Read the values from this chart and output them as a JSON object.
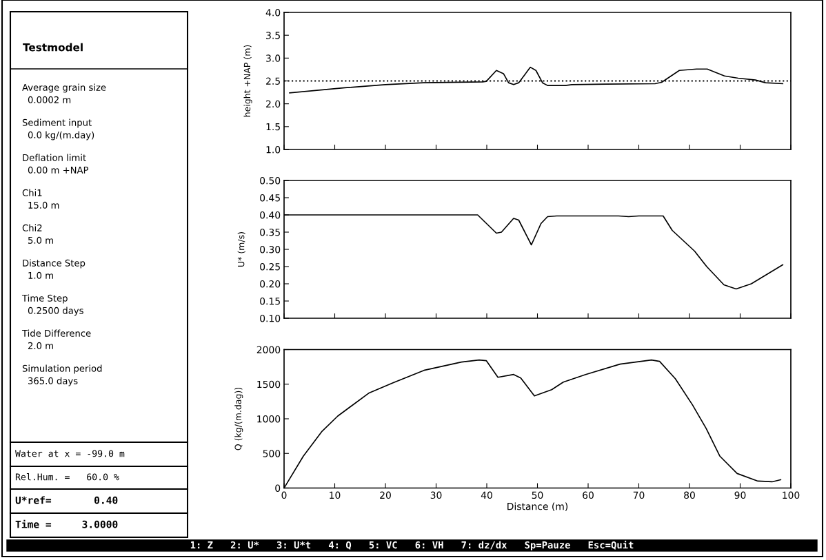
{
  "chart_data": [
    {
      "type": "other",
      "title": "Testmodel",
      "annotations": [
        "Average grain size",
        "0.0002 m",
        "Sediment input",
        "0.0 kg/(m.day)",
        "Deflation limit",
        "0.00 m +NAP",
        "Chi1",
        "15.0 m",
        "Chi2",
        "5.0 m",
        "Distance Step",
        "1.0 m",
        "Time Step",
        "0.2500 days",
        "Tide Difference",
        "2.0 m",
        "Simulation period",
        "365.0 days"
      ]
    },
    {
      "type": "other",
      "annotations": [
        "Water at x = -99.0 m",
        "Rel.Hum. =   60.0 %",
        "U*ref=       0.40",
        "Time =     3.0000"
      ]
    },
    {
      "type": "line",
      "ylabel": "height +NAP (m)",
      "xlim": [
        0,
        100
      ],
      "xticks": [
        0,
        10,
        20,
        30,
        40,
        50,
        60,
        70,
        80,
        90,
        100
      ],
      "ylim": [
        1.0,
        4.0
      ],
      "yticks": [
        {
          "value": 1.0,
          "label": "1.0"
        },
        {
          "value": 1.5,
          "label": "1.5"
        },
        {
          "value": 2.0,
          "label": "2.0"
        },
        {
          "value": 2.5,
          "label": "2.5"
        },
        {
          "value": 3.0,
          "label": "3.0"
        },
        {
          "value": 3.5,
          "label": "3.5"
        },
        {
          "value": 4.0,
          "label": "4.0"
        }
      ],
      "tick_labels": "y",
      "grid": false,
      "line_style": "solid",
      "ref_lines": [
        {
          "axis": "y",
          "value": 2.5,
          "line_style": "dotted",
          "color": "#000000"
        }
      ],
      "series": [
        {
          "color": "#000000",
          "x": [
            1.1,
            12,
            20,
            27.5,
            39.2,
            39.9,
            41.9,
            43.3,
            44.3,
            45.3,
            46.3,
            48.6,
            49.7,
            51,
            52,
            55.5,
            56.8,
            63.6,
            73.2,
            74.5,
            78,
            81.4,
            83.5,
            86.9,
            89.6,
            93,
            95,
            98.4
          ],
          "values": [
            2.24,
            2.35,
            2.42,
            2.46,
            2.48,
            2.49,
            2.73,
            2.66,
            2.46,
            2.42,
            2.46,
            2.8,
            2.73,
            2.46,
            2.4,
            2.4,
            2.42,
            2.43,
            2.44,
            2.47,
            2.73,
            2.76,
            2.76,
            2.61,
            2.56,
            2.52,
            2.46,
            2.44
          ]
        }
      ]
    },
    {
      "type": "line",
      "ylabel": "U* (m/s)",
      "xlim": [
        0,
        100
      ],
      "xticks": [
        0,
        10,
        20,
        30,
        40,
        50,
        60,
        70,
        80,
        90,
        100
      ],
      "ylim": [
        0.1,
        0.5
      ],
      "yticks": [
        {
          "value": 0.1,
          "label": "0.10"
        },
        {
          "value": 0.15,
          "label": "0.15"
        },
        {
          "value": 0.2,
          "label": "0.20"
        },
        {
          "value": 0.25,
          "label": "0.25"
        },
        {
          "value": 0.3,
          "label": "0.30"
        },
        {
          "value": 0.35,
          "label": "0.35"
        },
        {
          "value": 0.4,
          "label": "0.40"
        },
        {
          "value": 0.45,
          "label": "0.45"
        },
        {
          "value": 0.5,
          "label": "0.50"
        }
      ],
      "tick_labels": "y",
      "grid": false,
      "line_style": "solid",
      "series": [
        {
          "color": "#000000",
          "x": [
            0,
            38.2,
            41.9,
            42.9,
            45.3,
            46.3,
            48.8,
            50.7,
            52,
            53.8,
            66,
            68,
            70,
            74.8,
            76.6,
            81,
            83.4,
            86.8,
            89.2,
            92.2,
            98.4
          ],
          "values": [
            0.4,
            0.4,
            0.347,
            0.35,
            0.39,
            0.385,
            0.313,
            0.375,
            0.395,
            0.397,
            0.397,
            0.395,
            0.397,
            0.397,
            0.355,
            0.295,
            0.25,
            0.197,
            0.185,
            0.2,
            0.255
          ]
        }
      ]
    },
    {
      "type": "line",
      "ylabel": "Q (kg/(m.dag))",
      "xlabel": "Distance (m)",
      "xlim": [
        0,
        100
      ],
      "xticks": [
        0,
        10,
        20,
        30,
        40,
        50,
        60,
        70,
        80,
        90,
        100
      ],
      "ylim": [
        0,
        2000
      ],
      "yticks": [
        0,
        500,
        1000,
        1500,
        2000
      ],
      "grid": false,
      "line_style": "solid",
      "series": [
        {
          "color": "#000000",
          "x": [
            0,
            3.8,
            7.5,
            10.6,
            16.7,
            21.5,
            27.6,
            35,
            38.5,
            39.9,
            42.2,
            45.3,
            46.7,
            49.4,
            52.8,
            55.1,
            59.5,
            66.3,
            72.5,
            74.1,
            77.2,
            80.6,
            83.3,
            86,
            89.4,
            93.5,
            96.3,
            98
          ],
          "values": [
            0,
            460,
            820,
            1040,
            1370,
            1520,
            1700,
            1820,
            1850,
            1840,
            1600,
            1640,
            1590,
            1330,
            1420,
            1530,
            1640,
            1790,
            1850,
            1830,
            1580,
            1200,
            860,
            460,
            210,
            100,
            90,
            120
          ]
        }
      ]
    },
    {
      "type": "other",
      "annotations": [
        "1: Z",
        "2: U*",
        "3: U*t",
        "4: Q",
        "5: VC",
        "6: VH",
        "7: dz/dx",
        "Sp=Pauze",
        "Esc=Quit"
      ]
    }
  ]
}
